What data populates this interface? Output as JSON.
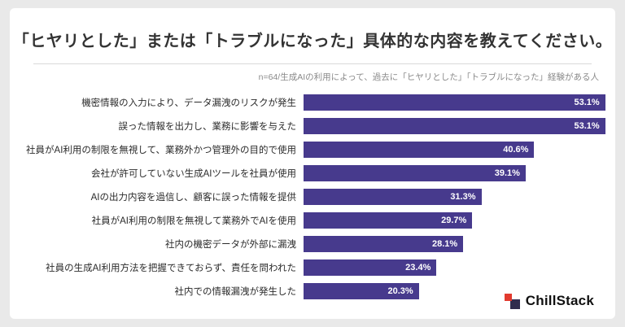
{
  "page": {
    "title": "「ヒヤリとした」または「トラブルになった」具体的な内容を教えてください。",
    "subtitle": "n=64/生成AIの利用によって、過去に「ヒヤリとした」「トラブルになった」経験がある人"
  },
  "chart_data": {
    "type": "bar",
    "orientation": "horizontal",
    "title": "「ヒヤリとした」または「トラブルになった」具体的な内容を教えてください。",
    "subtitle": "n=64/生成AIの利用によって、過去に「ヒヤリとした」「トラブルになった」経験がある人",
    "categories": [
      "機密情報の入力により、データ漏洩のリスクが発生",
      "誤った情報を出力し、業務に影響を与えた",
      "社員がAI利用の制限を無視して、業務外かつ管理外の目的で使用",
      "会社が許可していない生成AIツールを社員が使用",
      "AIの出力内容を過信し、顧客に誤った情報を提供",
      "社員がAI利用の制限を無視して業務外でAIを使用",
      "社内の機密データが外部に漏洩",
      "社員の生成AI利用方法を把握できておらず、責任を問われた",
      "社内での情報漏洩が発生した"
    ],
    "values": [
      53.1,
      53.1,
      40.6,
      39.1,
      31.3,
      29.7,
      28.1,
      23.4,
      20.3
    ],
    "value_suffix": "%",
    "xlim": [
      0,
      54
    ],
    "grid": false,
    "legend": "none",
    "bar_color": "#473a8d",
    "value_label_color": "#ffffff"
  },
  "logo": {
    "text": "ChillStack",
    "mark_color_red": "#e23a2e",
    "mark_color_dark": "#312d4e"
  },
  "colors": {
    "page_background": "#e9e9e9",
    "card_background": "#ffffff",
    "title_text": "#333333",
    "subtitle_text": "#8a8a8a",
    "divider": "#d9d9d9",
    "category_text": "#2b2b2b"
  }
}
